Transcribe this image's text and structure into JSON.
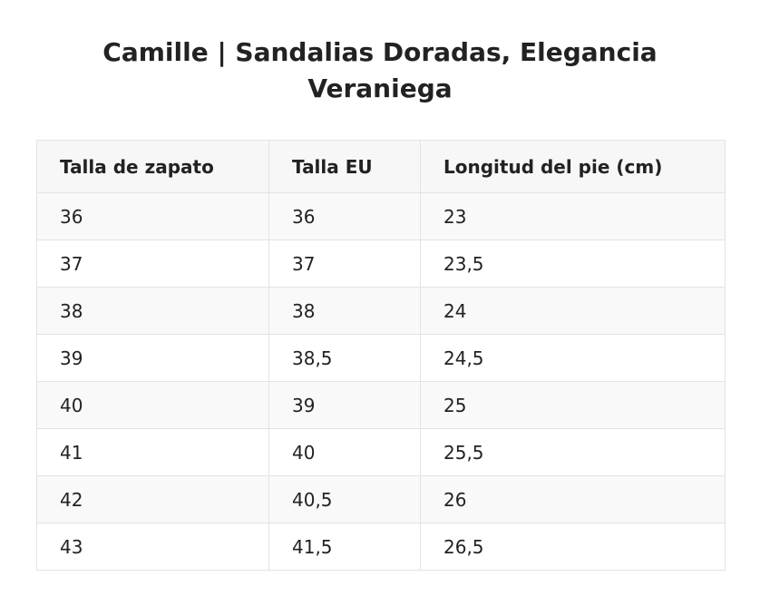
{
  "title": "Camille | Sandalias Doradas, Elegancia Veraniega",
  "table": {
    "headers": [
      "Talla de zapato",
      "Talla EU",
      "Longitud del pie (cm)"
    ],
    "rows": [
      [
        "36",
        "36",
        "23"
      ],
      [
        "37",
        "37",
        "23,5"
      ],
      [
        "38",
        "38",
        "24"
      ],
      [
        "39",
        "38,5",
        "24,5"
      ],
      [
        "40",
        "39",
        "25"
      ],
      [
        "41",
        "40",
        "25,5"
      ],
      [
        "42",
        "40,5",
        "26"
      ],
      [
        "43",
        "41,5",
        "26,5"
      ]
    ]
  }
}
